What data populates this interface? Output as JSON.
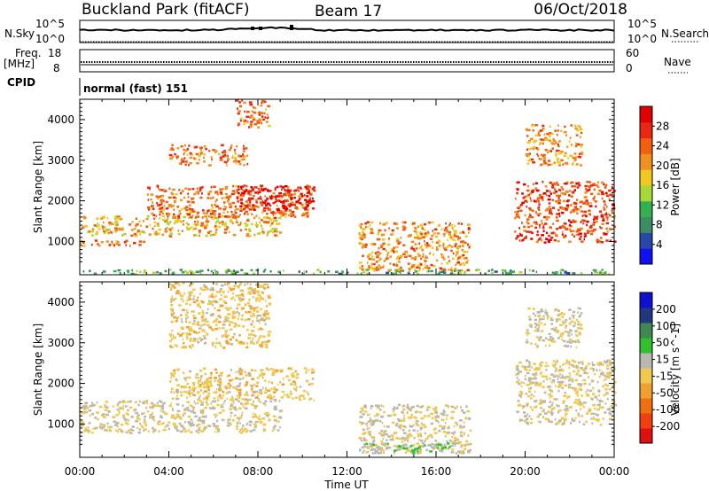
{
  "header": {
    "station": "Buckland Park (fitACF)",
    "beam": "Beam 17",
    "date": "06/Oct/2018"
  },
  "left_labels": {
    "nsky": "N.Sky",
    "nsky_top": "10^5",
    "nsky_bottom": "10^0",
    "freq": "Freq.",
    "freq_unit": "[MHz]",
    "freq_top": "18",
    "freq_bottom": "8",
    "cpid": "CPID"
  },
  "right_labels": {
    "nsearch": "N.Search",
    "nsearch_top": "10^5",
    "nsearch_bottom": "10^0",
    "nave": "Nave",
    "nave_top": "60",
    "nave_bottom": "0"
  },
  "cpid_text": "normal (fast) 151",
  "colors": {
    "power": [
      "#1010f0",
      "#2848a8",
      "#3c8c64",
      "#34b050",
      "#a8d838",
      "#f0c820",
      "#f09020",
      "#f06010",
      "#e82810",
      "#e00000"
    ],
    "velocity": [
      "#e01010",
      "#f04010",
      "#f07010",
      "#f0a030",
      "#f0c850",
      "#b8b8b0",
      "#30c030",
      "#408850",
      "#203880",
      "#1010d0"
    ]
  },
  "chart_data": [
    {
      "type": "heatmap",
      "name": "power",
      "ylabel": "Slant Range [km]",
      "xlabel": "Time UT",
      "xlim": [
        "00:00",
        "24:00"
      ],
      "ylim": [
        180,
        4500
      ],
      "x_ticks": [
        "00:00",
        "04:00",
        "08:00",
        "12:00",
        "16:00",
        "20:00",
        "00:00"
      ],
      "y_ticks": [
        1000,
        2000,
        3000,
        4000
      ],
      "colorbar": {
        "label": "Power [dB]",
        "ticks": [
          "4",
          "8",
          "12",
          "16",
          "20",
          "24",
          "28"
        ],
        "range": [
          0,
          30
        ]
      },
      "regions": [
        {
          "start_ut": 0.0,
          "end_ut": 24.0,
          "range_km": [
            220,
            330
          ],
          "level": 10
        },
        {
          "start_ut": 0.0,
          "end_ut": 3.0,
          "range_km": [
            900,
            1050
          ],
          "level": 22
        },
        {
          "start_ut": 0.0,
          "end_ut": 9.0,
          "range_km": [
            1150,
            1650
          ],
          "level": 18
        },
        {
          "start_ut": 3.0,
          "end_ut": 10.5,
          "range_km": [
            1600,
            2400
          ],
          "level": 22
        },
        {
          "start_ut": 7.0,
          "end_ut": 10.5,
          "range_km": [
            1800,
            2400
          ],
          "level": 28
        },
        {
          "start_ut": 4.0,
          "end_ut": 7.5,
          "range_km": [
            2900,
            3400
          ],
          "level": 22
        },
        {
          "start_ut": 7.0,
          "end_ut": 8.5,
          "range_km": [
            3800,
            4500
          ],
          "level": 22
        },
        {
          "start_ut": 12.5,
          "end_ut": 17.5,
          "range_km": [
            300,
            1500
          ],
          "level": 20
        },
        {
          "start_ut": 19.5,
          "end_ut": 24.0,
          "range_km": [
            1000,
            2500
          ],
          "level": 24
        },
        {
          "start_ut": 20.0,
          "end_ut": 22.5,
          "range_km": [
            2900,
            3900
          ],
          "level": 20
        }
      ]
    },
    {
      "type": "heatmap",
      "name": "velocity",
      "ylabel": "Slant Range [km]",
      "xlabel": "Time UT",
      "xlim": [
        "00:00",
        "24:00"
      ],
      "ylim": [
        180,
        4500
      ],
      "x_ticks": [
        "00:00",
        "04:00",
        "08:00",
        "12:00",
        "16:00",
        "20:00",
        "00:00"
      ],
      "y_ticks": [
        1000,
        2000,
        3000,
        4000
      ],
      "colorbar": {
        "label": "Velocity [m s^-1]",
        "ticks": [
          "200",
          "100",
          "50",
          "15",
          "-15",
          "-50",
          "-100",
          "-200"
        ],
        "range": [
          -250,
          250
        ]
      },
      "regions": [
        {
          "start_ut": 0.0,
          "end_ut": 9.0,
          "range_km": [
            800,
            1600
          ],
          "value": 0
        },
        {
          "start_ut": 4.0,
          "end_ut": 10.5,
          "range_km": [
            1600,
            2400
          ],
          "value": -30
        },
        {
          "start_ut": 4.0,
          "end_ut": 8.5,
          "range_km": [
            2900,
            4500
          ],
          "value": -30
        },
        {
          "start_ut": 12.5,
          "end_ut": 17.5,
          "range_km": [
            300,
            1500
          ],
          "value": 0
        },
        {
          "start_ut": 12.5,
          "end_ut": 17.5,
          "range_km": [
            300,
            550
          ],
          "value": 40
        },
        {
          "start_ut": 19.5,
          "end_ut": 24.0,
          "range_km": [
            1000,
            2600
          ],
          "value": 0
        },
        {
          "start_ut": 20.0,
          "end_ut": 22.5,
          "range_km": [
            2900,
            3900
          ],
          "value": 0
        }
      ]
    }
  ]
}
